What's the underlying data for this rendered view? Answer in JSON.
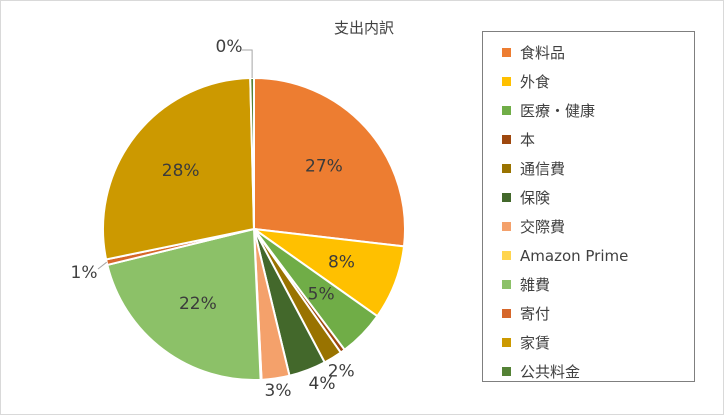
{
  "chart_data": {
    "type": "pie",
    "title": "支出内訳",
    "legend_position": "right",
    "categories": [
      "食料品",
      "外食",
      "医療・健康",
      "本",
      "通信費",
      "保険",
      "交際費",
      "Amazon Prime",
      "雑費",
      "寄付",
      "家賃",
      "公共料金"
    ],
    "values": [
      27,
      8,
      5,
      0.5,
      2,
      4,
      3,
      0.1,
      22,
      0.6,
      28,
      0.4
    ],
    "labels": [
      "27%",
      "8%",
      "5%",
      "",
      "2%",
      "4%",
      "3%",
      "",
      "22%",
      "1%",
      "28%",
      "0%"
    ],
    "colors": [
      "#ED7D31",
      "#FFC000",
      "#70AD47",
      "#9E480E",
      "#997300",
      "#43682B",
      "#F4A16B",
      "#FFD54F",
      "#8CC168",
      "#D6672A",
      "#CC9900",
      "#548235"
    ]
  }
}
